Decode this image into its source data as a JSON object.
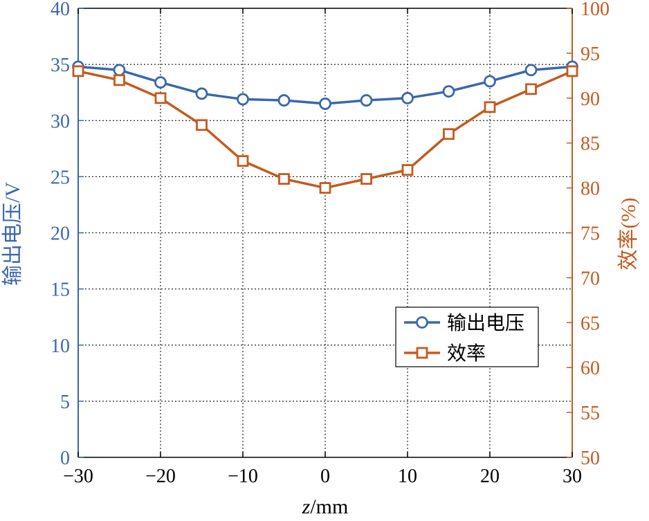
{
  "chart_data": {
    "type": "line",
    "xlabel_var": "z",
    "xlabel_unit": "/mm",
    "ylabel_left": "输出电压/V",
    "ylabel_right": "效率(%)",
    "x": [
      -30,
      -25,
      -20,
      -15,
      -10,
      -5,
      0,
      5,
      10,
      15,
      20,
      25,
      30
    ],
    "xlim": [
      -30,
      30
    ],
    "xticks": [
      -30,
      -20,
      -10,
      0,
      10,
      20,
      30
    ],
    "xtick_labels": [
      "−30",
      "−20",
      "−10",
      "0",
      "10",
      "20",
      "30"
    ],
    "ylim_left": [
      0,
      40
    ],
    "yticks_left": [
      0,
      5,
      10,
      15,
      20,
      25,
      30,
      35,
      40
    ],
    "ylim_right": [
      50,
      100
    ],
    "yticks_right": [
      50,
      55,
      60,
      65,
      70,
      75,
      80,
      85,
      90,
      95,
      100
    ],
    "grid": true,
    "legend_position": "lower-right",
    "series": [
      {
        "name": "输出电压",
        "axis": "left",
        "marker": "circle",
        "color": "#3A67AE",
        "values": [
          34.8,
          34.5,
          33.4,
          32.4,
          31.9,
          31.8,
          31.5,
          31.8,
          32.0,
          32.6,
          33.5,
          34.5,
          34.8
        ]
      },
      {
        "name": "效率",
        "axis": "right",
        "marker": "square",
        "color": "#C55A1E",
        "values": [
          93,
          92,
          90,
          87,
          83,
          81,
          80,
          81,
          82,
          86,
          89,
          91,
          93
        ]
      }
    ]
  }
}
